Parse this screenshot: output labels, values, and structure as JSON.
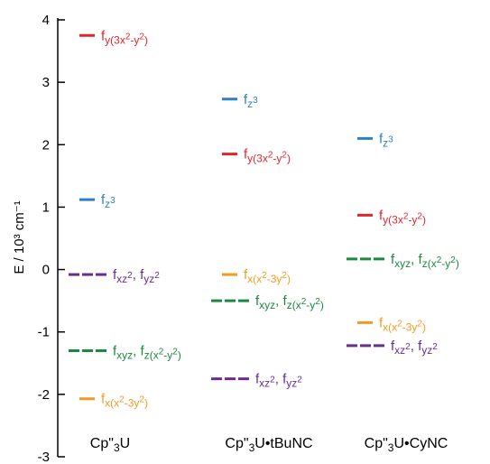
{
  "colors": {
    "red": "#e0262c",
    "blue": "#2e7fc1",
    "orange": "#f39a21",
    "purple": "#6a2c91",
    "green": "#1a8a3f"
  },
  "chart_data": {
    "type": "energy-level-diagram",
    "ylabel": "E / 10³ cm⁻¹",
    "ylim": [
      -3,
      4
    ],
    "yticks": [
      "4",
      "3",
      "2",
      "1",
      "0",
      "-1",
      "-2",
      "-3"
    ],
    "columns": [
      {
        "label": "Cp\"₃U",
        "levels": [
          {
            "energy": 3.75,
            "color": "red",
            "style": "solid",
            "label": "fy(3x²-y²)"
          },
          {
            "energy": 1.12,
            "color": "blue",
            "style": "solid",
            "label": "fz³"
          },
          {
            "energy": -0.08,
            "color": "purple",
            "style": "dashed",
            "label": "fxz², fyz²"
          },
          {
            "energy": -1.3,
            "color": "green",
            "style": "dashed",
            "label": "fxyz, fz(x²-y²)"
          },
          {
            "energy": -2.07,
            "color": "orange",
            "style": "solid",
            "label": "fx(x²-3y²)"
          }
        ]
      },
      {
        "label": "Cp\"₃U•tBuNC",
        "levels": [
          {
            "energy": 2.73,
            "color": "blue",
            "style": "solid",
            "label": "fz³"
          },
          {
            "energy": 1.85,
            "color": "red",
            "style": "solid",
            "label": "fy(3x²-y²)"
          },
          {
            "energy": -0.08,
            "color": "orange",
            "style": "solid",
            "label": "fx(x²-3y²)"
          },
          {
            "energy": -0.5,
            "color": "green",
            "style": "dashed",
            "label": "fxyz, fz(x²-y²)"
          },
          {
            "energy": -1.75,
            "color": "purple",
            "style": "dashed",
            "label": "fxz², fyz²"
          }
        ]
      },
      {
        "label": "Cp\"₃U•CyNC",
        "levels": [
          {
            "energy": 2.1,
            "color": "blue",
            "style": "solid",
            "label": "fz³"
          },
          {
            "energy": 0.87,
            "color": "red",
            "style": "solid",
            "label": "fy(3x²-y²)"
          },
          {
            "energy": 0.17,
            "color": "green",
            "style": "dashed",
            "label": "fxyz, fz(x²-y²)"
          },
          {
            "energy": -0.85,
            "color": "orange",
            "style": "solid",
            "label": "fx(x²-3y²)"
          },
          {
            "energy": -1.22,
            "color": "purple",
            "style": "dashed",
            "label": "fxz², fyz²"
          }
        ]
      }
    ]
  }
}
